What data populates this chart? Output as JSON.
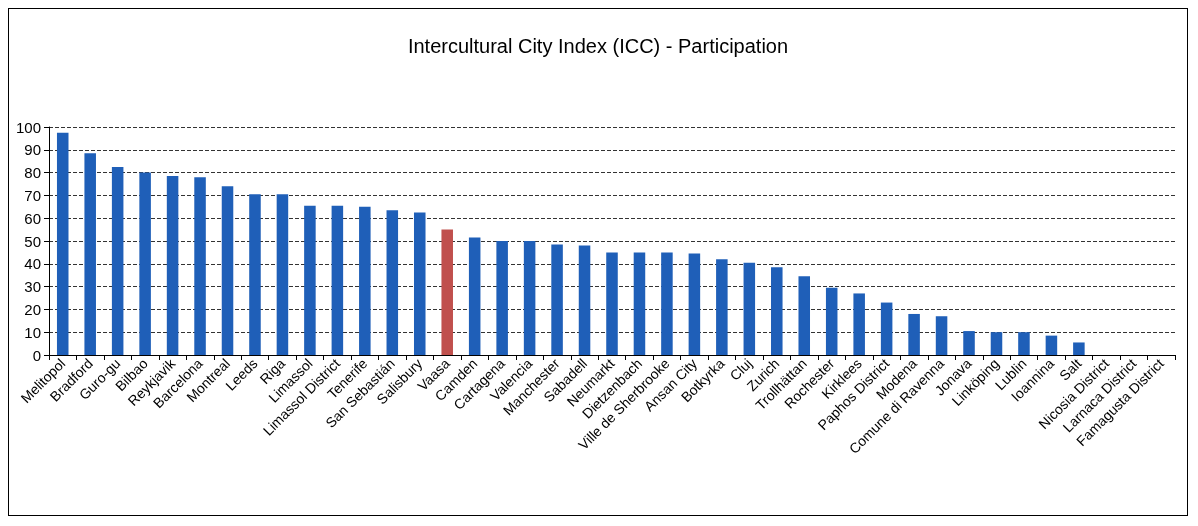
{
  "chart_data": {
    "type": "bar",
    "title": "Intercultural City Index (ICC) - Participation",
    "categories": [
      "Melitopol",
      "Bradford",
      "Guro-gu",
      "Bilbao",
      "Reykjavik",
      "Barcelona",
      "Montreal",
      "Leeds",
      "Riga",
      "Limassol",
      "Limassol District",
      "Tenerife",
      "San Sebastián",
      "Salisbury",
      "Vaasa",
      "Camden",
      "Cartagena",
      "Valencia",
      "Manchester",
      "Sabadell",
      "Neumarkt",
      "Dietzenbach",
      "Ville de Sherbrooke",
      "Ansan City",
      "Botkyrka",
      "Cluj",
      "Zurich",
      "Trollhättan",
      "Rochester",
      "Kirklees",
      "Paphos District",
      "Modena",
      "Comune di Ravenna",
      "Jonava",
      "Linköping",
      "Lublin",
      "Ioannina",
      "Salt",
      "Nicosia District",
      "Larnaca District",
      "Famagusta District"
    ],
    "values": [
      97.5,
      88.5,
      82.5,
      80,
      78.5,
      78,
      74,
      70.5,
      70.5,
      65.5,
      65.5,
      65,
      63.5,
      62.5,
      55,
      51.5,
      50,
      50,
      48.5,
      48,
      45,
      45,
      45,
      44.5,
      42,
      40.5,
      38.5,
      34.5,
      29.5,
      27,
      23,
      18,
      17,
      10.5,
      10,
      10,
      8.5,
      5.5,
      0,
      0,
      0
    ],
    "colors": [
      "#1f5fb8",
      "#1f5fb8",
      "#1f5fb8",
      "#1f5fb8",
      "#1f5fb8",
      "#1f5fb8",
      "#1f5fb8",
      "#1f5fb8",
      "#1f5fb8",
      "#1f5fb8",
      "#1f5fb8",
      "#1f5fb8",
      "#1f5fb8",
      "#1f5fb8",
      "#c0504d",
      "#1f5fb8",
      "#1f5fb8",
      "#1f5fb8",
      "#1f5fb8",
      "#1f5fb8",
      "#1f5fb8",
      "#1f5fb8",
      "#1f5fb8",
      "#1f5fb8",
      "#1f5fb8",
      "#1f5fb8",
      "#1f5fb8",
      "#1f5fb8",
      "#1f5fb8",
      "#1f5fb8",
      "#1f5fb8",
      "#1f5fb8",
      "#1f5fb8",
      "#1f5fb8",
      "#1f5fb8",
      "#1f5fb8",
      "#1f5fb8",
      "#1f5fb8",
      "#1f5fb8",
      "#1f5fb8",
      "#1f5fb8"
    ],
    "ylim": [
      0,
      100
    ],
    "yticks": [
      0,
      10,
      20,
      30,
      40,
      50,
      60,
      70,
      80,
      90,
      100
    ],
    "grid": "y"
  }
}
